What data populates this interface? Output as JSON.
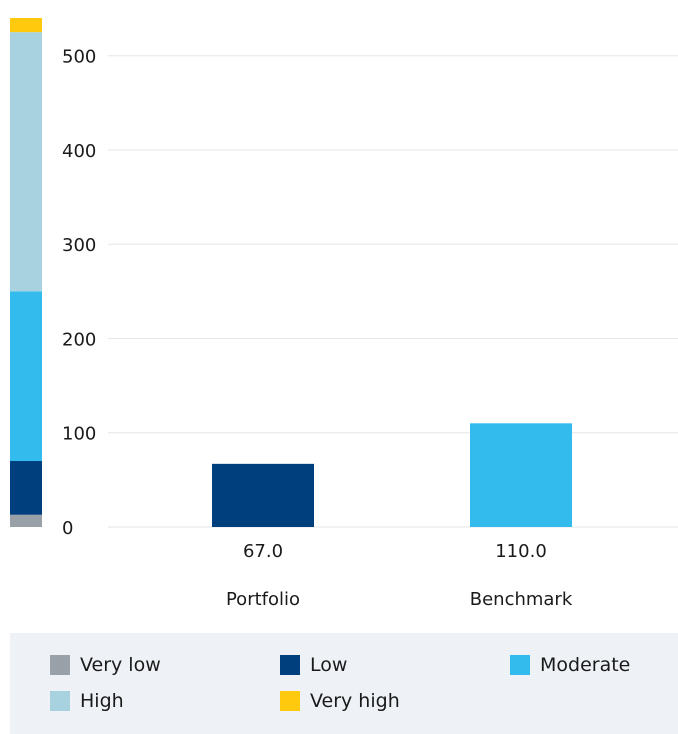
{
  "chart_data": {
    "type": "bar",
    "categories": [
      "Portfolio",
      "Benchmark"
    ],
    "values": [
      67.0,
      110.0
    ],
    "value_labels": [
      "67.0",
      "110.0"
    ],
    "bar_colors": [
      "#003f7d",
      "#33bbee"
    ],
    "ylim": [
      0,
      540
    ],
    "yticks": [
      0,
      100,
      200,
      300,
      400,
      500
    ],
    "grid": true,
    "title": "",
    "xlabel": "",
    "ylabel": "",
    "scale_bar": {
      "segments": [
        {
          "name": "Very low",
          "from": 0,
          "to": 13,
          "color": "#9aa0a8"
        },
        {
          "name": "Low",
          "from": 13,
          "to": 70,
          "color": "#003f7d"
        },
        {
          "name": "Moderate",
          "from": 70,
          "to": 250,
          "color": "#33bbee"
        },
        {
          "name": "High",
          "from": 250,
          "to": 525,
          "color": "#a8d2e0"
        },
        {
          "name": "Very high",
          "from": 525,
          "to": 540,
          "color": "#ffc90e"
        }
      ]
    },
    "legend": {
      "placement": "bottom",
      "items": [
        {
          "label": "Very low",
          "color": "#9aa0a8"
        },
        {
          "label": "Low",
          "color": "#003f7d"
        },
        {
          "label": "Moderate",
          "color": "#33bbee"
        },
        {
          "label": "High",
          "color": "#a8d2e0"
        },
        {
          "label": "Very high",
          "color": "#ffc90e"
        }
      ]
    }
  }
}
